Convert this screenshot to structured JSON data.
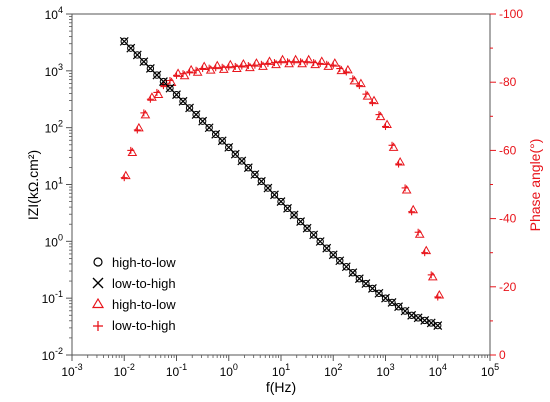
{
  "colors": {
    "black": "#000000",
    "red": "#e8141b",
    "grey": "#555555"
  },
  "chart_data": {
    "type": "scatter",
    "xlabel": "f(Hz)",
    "ylabel_left": "IZI(kΩ.cm²)",
    "ylabel_right": "Phase angle(°)",
    "x_scale": "log",
    "y_left_scale": "log",
    "xlim": [
      0.001,
      100000
    ],
    "ylim_left": [
      0.01,
      10000
    ],
    "ylim_right": [
      0,
      -100
    ],
    "grid": false,
    "legend_placement": "bottom-left",
    "x_ticks": [
      {
        "value": 0.001,
        "base": "10",
        "exp": "-3"
      },
      {
        "value": 0.01,
        "base": "10",
        "exp": "-2"
      },
      {
        "value": 0.1,
        "base": "10",
        "exp": "-1"
      },
      {
        "value": 1,
        "base": "10",
        "exp": "0"
      },
      {
        "value": 10,
        "base": "10",
        "exp": "1"
      },
      {
        "value": 100,
        "base": "10",
        "exp": "2"
      },
      {
        "value": 1000,
        "base": "10",
        "exp": "3"
      },
      {
        "value": 10000,
        "base": "10",
        "exp": "4"
      },
      {
        "value": 100000,
        "base": "10",
        "exp": "5"
      }
    ],
    "y_left_ticks": [
      {
        "value": 0.01,
        "base": "10",
        "exp": "-2"
      },
      {
        "value": 0.1,
        "base": "10",
        "exp": "-1"
      },
      {
        "value": 1,
        "base": "10",
        "exp": "0"
      },
      {
        "value": 10,
        "base": "10",
        "exp": "1"
      },
      {
        "value": 100,
        "base": "10",
        "exp": "2"
      },
      {
        "value": 1000,
        "base": "10",
        "exp": "3"
      },
      {
        "value": 10000,
        "base": "10",
        "exp": "4"
      }
    ],
    "y_right_ticks": [
      "-100",
      "-80",
      "-60",
      "-40",
      "-20",
      "0"
    ],
    "x_log10_range": [
      -2,
      4
    ],
    "points_per_decade": 8,
    "modulus_anchor_points": [
      {
        "log_f": -2.0,
        "z": 3300
      },
      {
        "log_f": -1.5,
        "z": 1100
      },
      {
        "log_f": -1.0,
        "z": 380
      },
      {
        "log_f": -0.5,
        "z": 130
      },
      {
        "log_f": 0.0,
        "z": 45
      },
      {
        "log_f": 0.5,
        "z": 15
      },
      {
        "log_f": 1.0,
        "z": 5.0
      },
      {
        "log_f": 1.5,
        "z": 1.7
      },
      {
        "log_f": 2.0,
        "z": 0.58
      },
      {
        "log_f": 2.5,
        "z": 0.22
      },
      {
        "log_f": 3.0,
        "z": 0.1
      },
      {
        "log_f": 3.5,
        "z": 0.05
      },
      {
        "log_f": 4.0,
        "z": 0.033
      }
    ],
    "phase_anchor_points": [
      {
        "log_f": -2.0,
        "phase": -52
      },
      {
        "log_f": -1.875,
        "phase": -60
      },
      {
        "log_f": -1.75,
        "phase": -66
      },
      {
        "log_f": -1.625,
        "phase": -71
      },
      {
        "log_f": -1.5,
        "phase": -75
      },
      {
        "log_f": -1.25,
        "phase": -79
      },
      {
        "log_f": -1.0,
        "phase": -82
      },
      {
        "log_f": -0.5,
        "phase": -84
      },
      {
        "log_f": 0.0,
        "phase": -84.5
      },
      {
        "log_f": 0.5,
        "phase": -85
      },
      {
        "log_f": 1.0,
        "phase": -86
      },
      {
        "log_f": 1.5,
        "phase": -86
      },
      {
        "log_f": 2.0,
        "phase": -85
      },
      {
        "log_f": 2.25,
        "phase": -83
      },
      {
        "log_f": 2.5,
        "phase": -79
      },
      {
        "log_f": 2.75,
        "phase": -74
      },
      {
        "log_f": 3.0,
        "phase": -67
      },
      {
        "log_f": 3.25,
        "phase": -56
      },
      {
        "log_f": 3.5,
        "phase": -42
      },
      {
        "log_f": 3.75,
        "phase": -30
      },
      {
        "log_f": 4.0,
        "phase": -17
      }
    ],
    "series": [
      {
        "name": "high-to-low",
        "axis": "left",
        "marker": "circle",
        "color": "#000000",
        "data": "modulus"
      },
      {
        "name": "low-to-high",
        "axis": "left",
        "marker": "x",
        "color": "#000000",
        "data": "modulus"
      },
      {
        "name": "high-to-low",
        "axis": "right",
        "marker": "triangle",
        "color": "#e8141b",
        "data": "phase"
      },
      {
        "name": "low-to-high",
        "axis": "right",
        "marker": "plus",
        "color": "#e8141b",
        "data": "phase"
      }
    ]
  }
}
